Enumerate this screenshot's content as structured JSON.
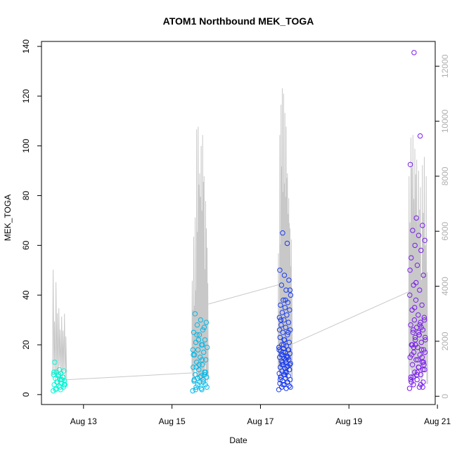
{
  "chart_data": {
    "type": "scatter",
    "title": "ATOM1 Northbound MEK_TOGA",
    "xlabel": "Date",
    "ylabel": "MEK_TOGA",
    "x_ticks": [
      "Aug 13",
      "Aug 15",
      "Aug 17",
      "Aug 19",
      "Aug 21"
    ],
    "x_tick_days": [
      13,
      15,
      17,
      19,
      21
    ],
    "xlim": [
      12.05,
      20.95
    ],
    "ylim": [
      -4,
      142
    ],
    "y_ticks": [
      0,
      20,
      40,
      60,
      80,
      100,
      120,
      140
    ],
    "y2lim": [
      -300,
      12900
    ],
    "y2_ticks": [
      0,
      2000,
      4000,
      6000,
      8000,
      10000,
      12000
    ],
    "y2_color": "#b0b0b0",
    "grid": false,
    "series": [
      {
        "color": "#00f5d4",
        "x_day_range": [
          12.3,
          12.6
        ],
        "values": [
          1.5,
          2,
          2.5,
          3,
          3.5,
          4,
          4.5,
          5,
          5.5,
          6,
          6.5,
          7,
          7.5,
          8,
          8.5,
          9,
          9.5,
          10,
          13,
          6,
          5,
          4,
          3,
          2,
          7,
          8,
          9,
          6,
          5,
          4
        ]
      },
      {
        "color": "#00b8e8",
        "x_day_range": [
          15.45,
          15.82
        ],
        "values": [
          1.5,
          2,
          3,
          4,
          5,
          5.5,
          6,
          6.5,
          7,
          7.5,
          8,
          9,
          10,
          11,
          12,
          13,
          14,
          15,
          16,
          17,
          18,
          19,
          20,
          21,
          22,
          24,
          25,
          26,
          28,
          29,
          30,
          32.5,
          27,
          22,
          18,
          14,
          11,
          9,
          7,
          6,
          5,
          4,
          3,
          2.5,
          2,
          8,
          12,
          16,
          20,
          24
        ]
      },
      {
        "color": "#1a3cf0",
        "x_day_range": [
          17.4,
          17.7
        ],
        "values": [
          2,
          2.5,
          3,
          3.5,
          4,
          4.5,
          5,
          5.5,
          6,
          6.5,
          7,
          7.5,
          8,
          8.5,
          9,
          9.5,
          10,
          10.5,
          11,
          11.5,
          12,
          12.5,
          13,
          13.5,
          14,
          14.5,
          15,
          15.5,
          16,
          16.5,
          17,
          17.5,
          18,
          18.5,
          19,
          19.5,
          20,
          21,
          22,
          23,
          24,
          25,
          26,
          27,
          28,
          29,
          30,
          31,
          32,
          33,
          34,
          35,
          36,
          37,
          38,
          40,
          42,
          44,
          46,
          48,
          50,
          60.8,
          65,
          42,
          38,
          30,
          25,
          20,
          18,
          15,
          12,
          10,
          8,
          6,
          5,
          4,
          3,
          14,
          16,
          18,
          22,
          26,
          11,
          13,
          12,
          9,
          7,
          15,
          17,
          19
        ]
      },
      {
        "color": "#7a1cf0",
        "x_day_range": [
          20.35,
          20.75
        ],
        "values": [
          2.5,
          3,
          4,
          5,
          6,
          7,
          8,
          9,
          10,
          11,
          12,
          13,
          14,
          15,
          16,
          17,
          18,
          19,
          20,
          21,
          22,
          23,
          24,
          25,
          26,
          27,
          28,
          29,
          30,
          31,
          32,
          34,
          36,
          38,
          40,
          42,
          44,
          48,
          52,
          55,
          58,
          60,
          62,
          64,
          66,
          68,
          71,
          92.5,
          104,
          137.5,
          12,
          14,
          16,
          18,
          20,
          22,
          24,
          26,
          10,
          8,
          6,
          4,
          35,
          30,
          25,
          20,
          15,
          45,
          50,
          28,
          19,
          13,
          9,
          5,
          27,
          23,
          17,
          11,
          7,
          3
        ]
      }
    ],
    "gray_line": {
      "color": "#c8c8c8",
      "bursts": [
        {
          "day_range": [
            12.3,
            12.62
          ],
          "peaks": [
            4600,
            4150,
            3200,
            2900,
            3000
          ]
        },
        {
          "day_range": [
            15.45,
            15.82
          ],
          "peaks": [
            4200,
            5800,
            6500,
            9700,
            9800,
            8100,
            9100,
            9500,
            8000,
            7100,
            5400
          ]
        },
        {
          "day_range": [
            17.4,
            17.72
          ],
          "peaks": [
            5200,
            9500,
            10600,
            11200,
            11000,
            10300,
            9800,
            8100,
            7200,
            6100,
            5700
          ]
        },
        {
          "day_range": [
            20.35,
            20.78
          ],
          "peaks": [
            8000,
            9400,
            9500,
            9000,
            8600,
            8200,
            7600,
            8400,
            8700,
            8000
          ]
        }
      ],
      "links": [
        {
          "from_day": 12.62,
          "to_day": 15.45,
          "from": 600,
          "to": 850
        },
        {
          "from_day": 15.82,
          "to_day": 17.4,
          "from": 3350,
          "to": 4050
        },
        {
          "from_day": 17.72,
          "to_day": 20.35,
          "from": 1900,
          "to": 3800
        }
      ]
    }
  }
}
